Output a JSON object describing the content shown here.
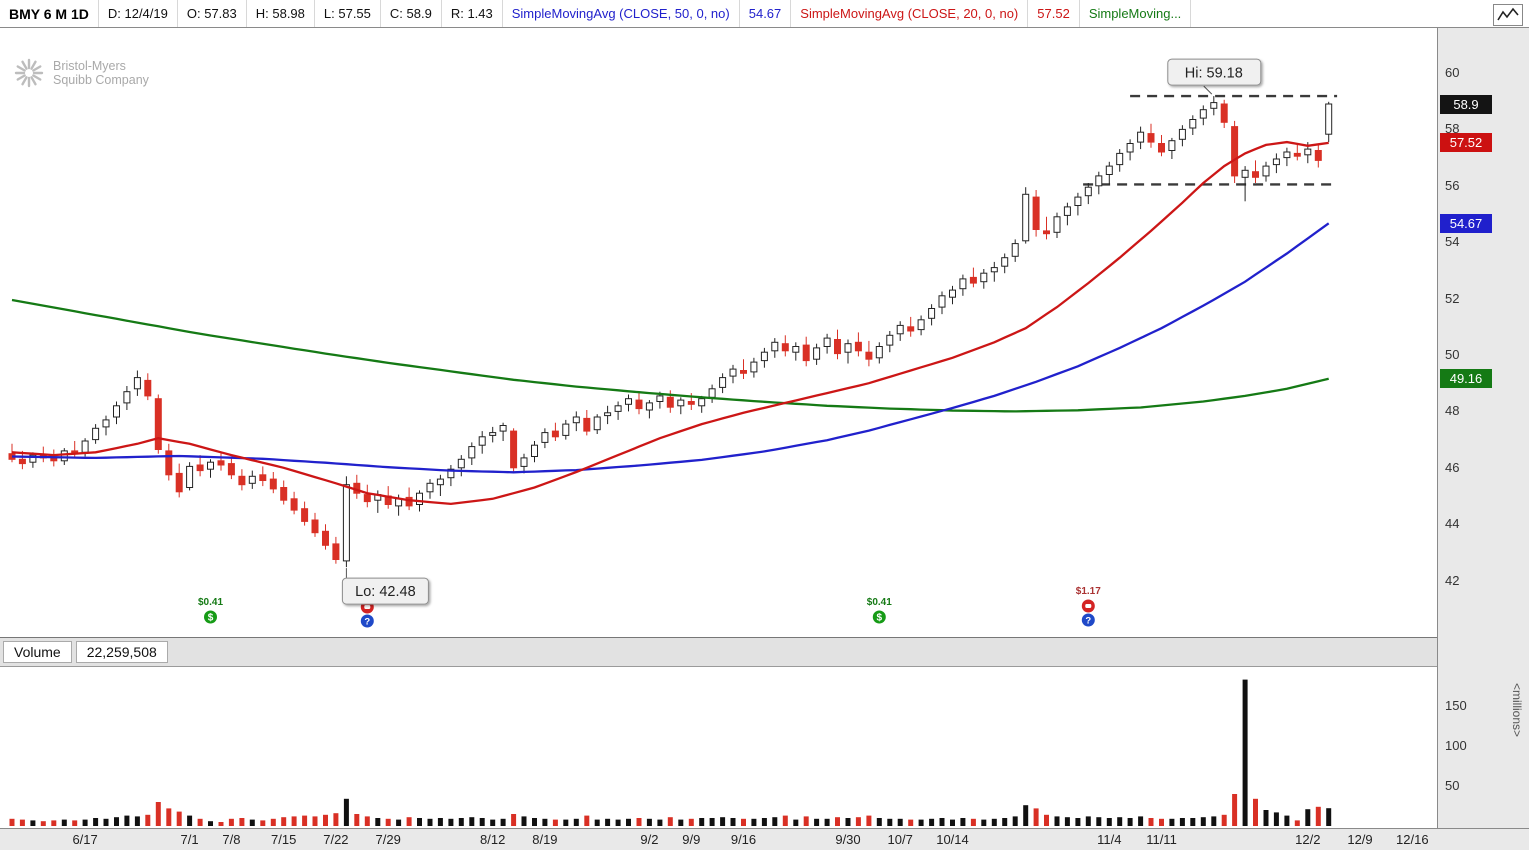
{
  "toolbar": {
    "segments": [
      {
        "text": "BMY 6 M 1D",
        "color": "#000000"
      },
      {
        "text": "D: 12/4/19",
        "color": "#111111"
      },
      {
        "text": "O: 57.83",
        "color": "#111111"
      },
      {
        "text": "H: 58.98",
        "color": "#111111"
      },
      {
        "text": "L: 57.55",
        "color": "#111111"
      },
      {
        "text": "C: 58.9",
        "color": "#111111"
      },
      {
        "text": "R: 1.43",
        "color": "#111111"
      },
      {
        "text": "SimpleMovingAvg (CLOSE, 50, 0, no)",
        "color": "#2121cc"
      },
      {
        "text": "54.67",
        "color": "#2121cc"
      },
      {
        "text": "SimpleMovingAvg (CLOSE, 20, 0, no)",
        "color": "#cc1616"
      },
      {
        "text": "57.52",
        "color": "#cc1616"
      },
      {
        "text": "SimpleMoving...",
        "color": "#157a15"
      }
    ]
  },
  "watermark": {
    "line1": "Bristol-Myers",
    "line2": "Squibb Company"
  },
  "volume_header": {
    "label": "Volume",
    "value": "22,259,508"
  },
  "price_axis": {
    "ticks": [
      60,
      58,
      56,
      54,
      52,
      50,
      48,
      46,
      44,
      42
    ],
    "tags": [
      {
        "text": "58.9",
        "price": 58.9,
        "bg": "#141414"
      },
      {
        "text": "57.52",
        "price": 57.52,
        "bg": "#cc1111"
      },
      {
        "text": "54.67",
        "price": 54.67,
        "bg": "#2020cc"
      },
      {
        "text": "49.16",
        "price": 49.16,
        "bg": "#157a15"
      }
    ]
  },
  "volume_axis": {
    "ticks": [
      150,
      100,
      50
    ],
    "unit": "<millions>"
  },
  "chart_data": {
    "type": "candlestick",
    "title": "BMY 6 M 1D",
    "symbol": "BMY",
    "timeframe": "6 M daily",
    "ylim": [
      40,
      61.6
    ],
    "last_bar": {
      "date": "12/4/19",
      "open": 57.83,
      "high": 58.98,
      "low": 57.55,
      "close": 58.9,
      "range": 1.43,
      "volume": "22,259,508"
    },
    "ohlc_fields": [
      "open",
      "high",
      "low",
      "close",
      "volume_millions"
    ],
    "candles": [
      [
        46.5,
        46.85,
        46.2,
        46.3,
        9
      ],
      [
        46.3,
        46.6,
        45.95,
        46.15,
        8
      ],
      [
        46.2,
        46.55,
        46.0,
        46.45,
        7
      ],
      [
        46.45,
        46.75,
        46.2,
        46.35,
        6
      ],
      [
        46.35,
        46.65,
        46.05,
        46.25,
        7
      ],
      [
        46.25,
        46.7,
        46.1,
        46.6,
        8
      ],
      [
        46.6,
        46.95,
        46.35,
        46.5,
        7
      ],
      [
        46.55,
        47.05,
        46.4,
        46.95,
        8
      ],
      [
        47.0,
        47.55,
        46.85,
        47.4,
        10
      ],
      [
        47.45,
        47.85,
        47.15,
        47.7,
        9
      ],
      [
        47.8,
        48.35,
        47.55,
        48.2,
        11
      ],
      [
        48.3,
        48.9,
        48.05,
        48.7,
        13
      ],
      [
        48.8,
        49.45,
        48.55,
        49.2,
        12
      ],
      [
        49.1,
        49.35,
        48.4,
        48.55,
        14
      ],
      [
        48.45,
        48.6,
        46.5,
        46.65,
        30
      ],
      [
        46.6,
        46.85,
        45.55,
        45.75,
        22
      ],
      [
        45.8,
        46.15,
        44.95,
        45.15,
        18
      ],
      [
        45.3,
        46.2,
        45.2,
        46.05,
        13
      ],
      [
        46.1,
        46.45,
        45.7,
        45.9,
        9
      ],
      [
        45.95,
        46.3,
        45.65,
        46.2,
        6
      ],
      [
        46.25,
        46.55,
        45.9,
        46.1,
        5
      ],
      [
        46.15,
        46.4,
        45.6,
        45.75,
        9
      ],
      [
        45.7,
        45.95,
        45.2,
        45.4,
        10
      ],
      [
        45.45,
        45.9,
        45.25,
        45.7,
        8
      ],
      [
        45.75,
        46.05,
        45.35,
        45.55,
        7
      ],
      [
        45.6,
        45.85,
        45.1,
        45.25,
        9
      ],
      [
        45.3,
        45.55,
        44.7,
        44.85,
        11
      ],
      [
        44.9,
        45.15,
        44.35,
        44.5,
        12
      ],
      [
        44.55,
        44.8,
        43.95,
        44.1,
        13
      ],
      [
        44.15,
        44.4,
        43.55,
        43.7,
        12
      ],
      [
        43.75,
        44.0,
        43.1,
        43.25,
        14
      ],
      [
        43.3,
        43.55,
        42.6,
        42.75,
        16
      ],
      [
        42.7,
        45.7,
        42.48,
        45.4,
        34
      ],
      [
        45.45,
        45.75,
        44.9,
        45.1,
        15
      ],
      [
        45.05,
        45.4,
        44.6,
        44.8,
        12
      ],
      [
        44.85,
        45.2,
        44.4,
        45.05,
        10
      ],
      [
        45.0,
        45.35,
        44.55,
        44.7,
        9
      ],
      [
        44.65,
        45.05,
        44.3,
        44.9,
        8
      ],
      [
        44.95,
        45.3,
        44.5,
        44.65,
        11
      ],
      [
        44.7,
        45.2,
        44.45,
        45.1,
        10
      ],
      [
        45.15,
        45.6,
        44.9,
        45.45,
        9
      ],
      [
        45.4,
        45.75,
        45.0,
        45.6,
        10
      ],
      [
        45.65,
        46.1,
        45.35,
        45.95,
        9
      ],
      [
        46.0,
        46.45,
        45.7,
        46.3,
        10
      ],
      [
        46.35,
        46.9,
        46.1,
        46.75,
        11
      ],
      [
        46.8,
        47.3,
        46.5,
        47.1,
        10
      ],
      [
        47.15,
        47.45,
        46.9,
        47.25,
        8
      ],
      [
        47.3,
        47.6,
        46.95,
        47.5,
        9
      ],
      [
        47.3,
        47.4,
        45.85,
        46.0,
        15
      ],
      [
        46.05,
        46.5,
        45.8,
        46.35,
        12
      ],
      [
        46.4,
        46.95,
        46.2,
        46.8,
        10
      ],
      [
        46.9,
        47.4,
        46.7,
        47.25,
        9
      ],
      [
        47.3,
        47.6,
        46.95,
        47.1,
        8
      ],
      [
        47.15,
        47.7,
        47.0,
        47.55,
        8
      ],
      [
        47.6,
        48.0,
        47.3,
        47.8,
        9
      ],
      [
        47.75,
        48.05,
        47.15,
        47.3,
        13
      ],
      [
        47.35,
        47.9,
        47.2,
        47.8,
        8
      ],
      [
        47.85,
        48.2,
        47.55,
        47.95,
        9
      ],
      [
        48.0,
        48.35,
        47.7,
        48.2,
        8
      ],
      [
        48.25,
        48.6,
        48.0,
        48.45,
        9
      ],
      [
        48.4,
        48.65,
        47.9,
        48.1,
        10
      ],
      [
        48.05,
        48.4,
        47.75,
        48.3,
        9
      ],
      [
        48.35,
        48.7,
        48.1,
        48.55,
        8
      ],
      [
        48.5,
        48.75,
        47.95,
        48.15,
        11
      ],
      [
        48.2,
        48.5,
        47.9,
        48.4,
        8
      ],
      [
        48.35,
        48.65,
        48.05,
        48.25,
        9
      ],
      [
        48.2,
        48.55,
        47.95,
        48.45,
        10
      ],
      [
        48.5,
        48.95,
        48.3,
        48.8,
        10
      ],
      [
        48.85,
        49.35,
        48.65,
        49.2,
        11
      ],
      [
        49.25,
        49.65,
        49.0,
        49.5,
        10
      ],
      [
        49.45,
        49.85,
        49.15,
        49.35,
        9
      ],
      [
        49.4,
        49.9,
        49.2,
        49.75,
        9
      ],
      [
        49.8,
        50.25,
        49.55,
        50.1,
        10
      ],
      [
        50.15,
        50.6,
        49.9,
        50.45,
        11
      ],
      [
        50.4,
        50.7,
        49.95,
        50.15,
        13
      ],
      [
        50.1,
        50.45,
        49.8,
        50.3,
        8
      ],
      [
        50.35,
        50.65,
        49.6,
        49.8,
        12
      ],
      [
        49.85,
        50.4,
        49.65,
        50.25,
        9
      ],
      [
        50.3,
        50.75,
        50.05,
        50.6,
        9
      ],
      [
        50.55,
        50.9,
        49.85,
        50.05,
        11
      ],
      [
        50.1,
        50.55,
        49.7,
        50.4,
        10
      ],
      [
        50.45,
        50.8,
        49.95,
        50.15,
        11
      ],
      [
        50.1,
        50.5,
        49.6,
        49.85,
        13
      ],
      [
        49.9,
        50.45,
        49.7,
        50.3,
        10
      ],
      [
        50.35,
        50.85,
        50.1,
        50.7,
        9
      ],
      [
        50.75,
        51.2,
        50.5,
        51.05,
        9
      ],
      [
        51.0,
        51.35,
        50.65,
        50.85,
        8
      ],
      [
        50.9,
        51.4,
        50.7,
        51.25,
        8
      ],
      [
        51.3,
        51.8,
        51.05,
        51.65,
        9
      ],
      [
        51.7,
        52.25,
        51.45,
        52.1,
        10
      ],
      [
        52.05,
        52.45,
        51.8,
        52.3,
        8
      ],
      [
        52.35,
        52.85,
        52.1,
        52.7,
        10
      ],
      [
        52.75,
        53.1,
        52.4,
        52.55,
        9
      ],
      [
        52.6,
        53.05,
        52.35,
        52.9,
        8
      ],
      [
        52.95,
        53.3,
        52.6,
        53.1,
        9
      ],
      [
        53.15,
        53.6,
        52.9,
        53.45,
        10
      ],
      [
        53.5,
        54.1,
        53.3,
        53.95,
        12
      ],
      [
        54.05,
        55.95,
        53.95,
        55.7,
        26
      ],
      [
        55.6,
        55.85,
        54.2,
        54.45,
        22
      ],
      [
        54.4,
        54.9,
        54.1,
        54.3,
        14
      ],
      [
        54.35,
        55.05,
        54.15,
        54.9,
        12
      ],
      [
        54.95,
        55.4,
        54.6,
        55.25,
        11
      ],
      [
        55.3,
        55.75,
        54.95,
        55.6,
        10
      ],
      [
        55.65,
        56.1,
        55.35,
        55.95,
        12
      ],
      [
        56.0,
        56.5,
        55.7,
        56.35,
        11
      ],
      [
        56.4,
        56.85,
        56.05,
        56.7,
        10
      ],
      [
        56.75,
        57.3,
        56.5,
        57.15,
        11
      ],
      [
        57.2,
        57.65,
        56.9,
        57.5,
        10
      ],
      [
        57.55,
        58.1,
        57.3,
        57.9,
        12
      ],
      [
        57.85,
        58.2,
        57.35,
        57.55,
        10
      ],
      [
        57.5,
        57.8,
        57.05,
        57.2,
        9
      ],
      [
        57.25,
        57.7,
        56.95,
        57.6,
        9
      ],
      [
        57.65,
        58.15,
        57.4,
        58.0,
        10
      ],
      [
        58.05,
        58.5,
        57.8,
        58.35,
        10
      ],
      [
        58.4,
        58.85,
        58.15,
        58.7,
        11
      ],
      [
        58.75,
        59.18,
        58.5,
        58.95,
        12
      ],
      [
        58.9,
        59.05,
        58.05,
        58.25,
        14
      ],
      [
        58.1,
        58.3,
        56.1,
        56.35,
        40
      ],
      [
        56.3,
        56.7,
        55.45,
        56.55,
        183
      ],
      [
        56.5,
        56.9,
        56.1,
        56.3,
        34
      ],
      [
        56.35,
        56.85,
        56.15,
        56.7,
        20
      ],
      [
        56.75,
        57.15,
        56.45,
        56.95,
        17
      ],
      [
        57.0,
        57.35,
        56.7,
        57.2,
        13
      ],
      [
        57.15,
        57.45,
        56.9,
        57.05,
        7
      ],
      [
        57.1,
        57.55,
        56.8,
        57.3,
        21
      ],
      [
        57.25,
        57.5,
        56.65,
        56.9,
        24
      ],
      [
        57.83,
        58.98,
        57.55,
        58.9,
        22.26
      ]
    ],
    "x_labels": [
      [
        "6/17",
        7
      ],
      [
        "7/1",
        17
      ],
      [
        "7/8",
        21
      ],
      [
        "7/15",
        26
      ],
      [
        "7/22",
        31
      ],
      [
        "7/29",
        36
      ],
      [
        "8/12",
        46
      ],
      [
        "8/19",
        51
      ],
      [
        "9/2",
        61
      ],
      [
        "9/9",
        65
      ],
      [
        "9/16",
        70
      ],
      [
        "9/30",
        80
      ],
      [
        "10/7",
        85
      ],
      [
        "10/14",
        90
      ],
      [
        "11/4",
        105
      ],
      [
        "11/11",
        110
      ],
      [
        "12/2",
        124
      ],
      [
        "12/9",
        129
      ],
      [
        "12/16",
        134
      ]
    ],
    "colors": {
      "up_fill": "#ffffff",
      "up_stroke": "#232323",
      "down": "#d93025"
    },
    "sma20": {
      "label": "SimpleMovingAvg (CLOSE, 20, 0, no)",
      "value": 57.52,
      "color": "#cc1616",
      "points": [
        [
          0,
          46.55
        ],
        [
          4,
          46.45
        ],
        [
          8,
          46.55
        ],
        [
          12,
          46.85
        ],
        [
          14,
          47.05
        ],
        [
          17,
          46.85
        ],
        [
          21,
          46.45
        ],
        [
          26,
          46.0
        ],
        [
          31,
          45.45
        ],
        [
          34,
          45.1
        ],
        [
          38,
          44.85
        ],
        [
          42,
          44.72
        ],
        [
          46,
          44.9
        ],
        [
          50,
          45.3
        ],
        [
          54,
          45.85
        ],
        [
          58,
          46.45
        ],
        [
          62,
          47.05
        ],
        [
          66,
          47.55
        ],
        [
          70,
          47.95
        ],
        [
          74,
          48.3
        ],
        [
          78,
          48.65
        ],
        [
          82,
          49.0
        ],
        [
          86,
          49.45
        ],
        [
          90,
          49.9
        ],
        [
          94,
          50.45
        ],
        [
          97,
          50.95
        ],
        [
          100,
          51.7
        ],
        [
          103,
          52.55
        ],
        [
          106,
          53.45
        ],
        [
          109,
          54.4
        ],
        [
          112,
          55.4
        ],
        [
          114,
          56.1
        ],
        [
          116,
          56.7
        ],
        [
          118,
          57.15
        ],
        [
          120,
          57.45
        ],
        [
          122,
          57.55
        ],
        [
          124,
          57.42
        ],
        [
          126,
          57.52
        ]
      ]
    },
    "sma50": {
      "label": "SimpleMovingAvg (CLOSE, 50, 0, no)",
      "value": 54.67,
      "color": "#2121cc",
      "points": [
        [
          0,
          46.4
        ],
        [
          8,
          46.35
        ],
        [
          16,
          46.42
        ],
        [
          24,
          46.32
        ],
        [
          30,
          46.18
        ],
        [
          36,
          46.02
        ],
        [
          42,
          45.9
        ],
        [
          48,
          45.84
        ],
        [
          54,
          45.92
        ],
        [
          60,
          46.08
        ],
        [
          66,
          46.28
        ],
        [
          72,
          46.58
        ],
        [
          78,
          46.98
        ],
        [
          82,
          47.32
        ],
        [
          86,
          47.72
        ],
        [
          90,
          48.12
        ],
        [
          94,
          48.55
        ],
        [
          98,
          49.05
        ],
        [
          102,
          49.6
        ],
        [
          106,
          50.25
        ],
        [
          110,
          50.95
        ],
        [
          114,
          51.75
        ],
        [
          118,
          52.6
        ],
        [
          122,
          53.6
        ],
        [
          126,
          54.67
        ]
      ]
    },
    "sma200": {
      "label": "SimpleMoving...",
      "value": 49.16,
      "color": "#157a15",
      "points": [
        [
          0,
          51.95
        ],
        [
          6,
          51.55
        ],
        [
          12,
          51.15
        ],
        [
          18,
          50.75
        ],
        [
          24,
          50.4
        ],
        [
          30,
          50.05
        ],
        [
          36,
          49.72
        ],
        [
          42,
          49.42
        ],
        [
          48,
          49.12
        ],
        [
          54,
          48.88
        ],
        [
          60,
          48.68
        ],
        [
          66,
          48.5
        ],
        [
          72,
          48.34
        ],
        [
          78,
          48.2
        ],
        [
          84,
          48.1
        ],
        [
          90,
          48.03
        ],
        [
          96,
          48.0
        ],
        [
          102,
          48.04
        ],
        [
          108,
          48.14
        ],
        [
          114,
          48.35
        ],
        [
          118,
          48.55
        ],
        [
          122,
          48.8
        ],
        [
          126,
          49.16
        ]
      ]
    },
    "annotations": {
      "hi_label": {
        "text": "Hi: 59.18",
        "index": 115,
        "price": 59.18
      },
      "lo_label": {
        "text": "Lo: 42.48",
        "index": 32,
        "price": 42.48
      },
      "dashed_lines": [
        {
          "price": 59.18,
          "i1": 107,
          "i2": 126.8
        },
        {
          "price": 56.05,
          "i1": 102.5,
          "i2": 126.8
        }
      ],
      "events": [
        {
          "index": 19,
          "label": "$0.41",
          "label_color": "#157a15",
          "icons": [
            "dividend"
          ]
        },
        {
          "index": 34,
          "icons": [
            "earnings",
            "question"
          ]
        },
        {
          "index": 83,
          "label": "$0.41",
          "label_color": "#157a15",
          "icons": [
            "dividend"
          ]
        },
        {
          "index": 103,
          "label": "$1.17",
          "label_color": "#aa3333",
          "icons": [
            "earnings",
            "question"
          ]
        }
      ]
    }
  }
}
